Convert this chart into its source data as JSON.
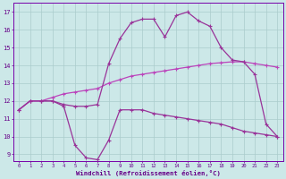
{
  "xlabel": "Windchill (Refroidissement éolien,°C)",
  "x_hours": [
    0,
    1,
    2,
    3,
    4,
    5,
    6,
    7,
    8,
    9,
    10,
    11,
    12,
    13,
    14,
    15,
    16,
    17,
    18,
    19,
    20,
    21,
    22,
    23
  ],
  "line1": [
    11.5,
    12.0,
    12.0,
    12.0,
    11.7,
    9.5,
    8.8,
    8.7,
    9.8,
    11.5,
    11.5,
    11.5,
    11.3,
    11.2,
    11.1,
    11.0,
    10.9,
    10.8,
    10.7,
    10.5,
    10.3,
    10.2,
    10.1,
    10.0
  ],
  "line2": [
    11.5,
    12.0,
    12.0,
    12.2,
    12.4,
    12.5,
    12.6,
    12.7,
    13.0,
    13.2,
    13.4,
    13.5,
    13.6,
    13.7,
    13.8,
    13.9,
    14.0,
    14.1,
    14.15,
    14.2,
    14.2,
    14.1,
    14.0,
    13.9
  ],
  "line3": [
    11.5,
    12.0,
    12.0,
    12.0,
    11.8,
    11.7,
    11.7,
    11.8,
    14.1,
    15.5,
    16.4,
    16.6,
    16.6,
    15.6,
    16.8,
    17.0,
    16.5,
    16.2,
    15.0,
    14.3,
    14.2,
    13.5,
    10.7,
    10.0
  ],
  "line1_color": "#993399",
  "line2_color": "#bb44bb",
  "line3_color": "#993399",
  "bg_color": "#cce8e8",
  "grid_color": "#aacccc",
  "spine_color": "#7700aa",
  "text_color": "#660088",
  "ylim": [
    8.6,
    17.5
  ],
  "yticks": [
    9,
    10,
    11,
    12,
    13,
    14,
    15,
    16,
    17
  ],
  "xlim": [
    -0.5,
    23.5
  ]
}
